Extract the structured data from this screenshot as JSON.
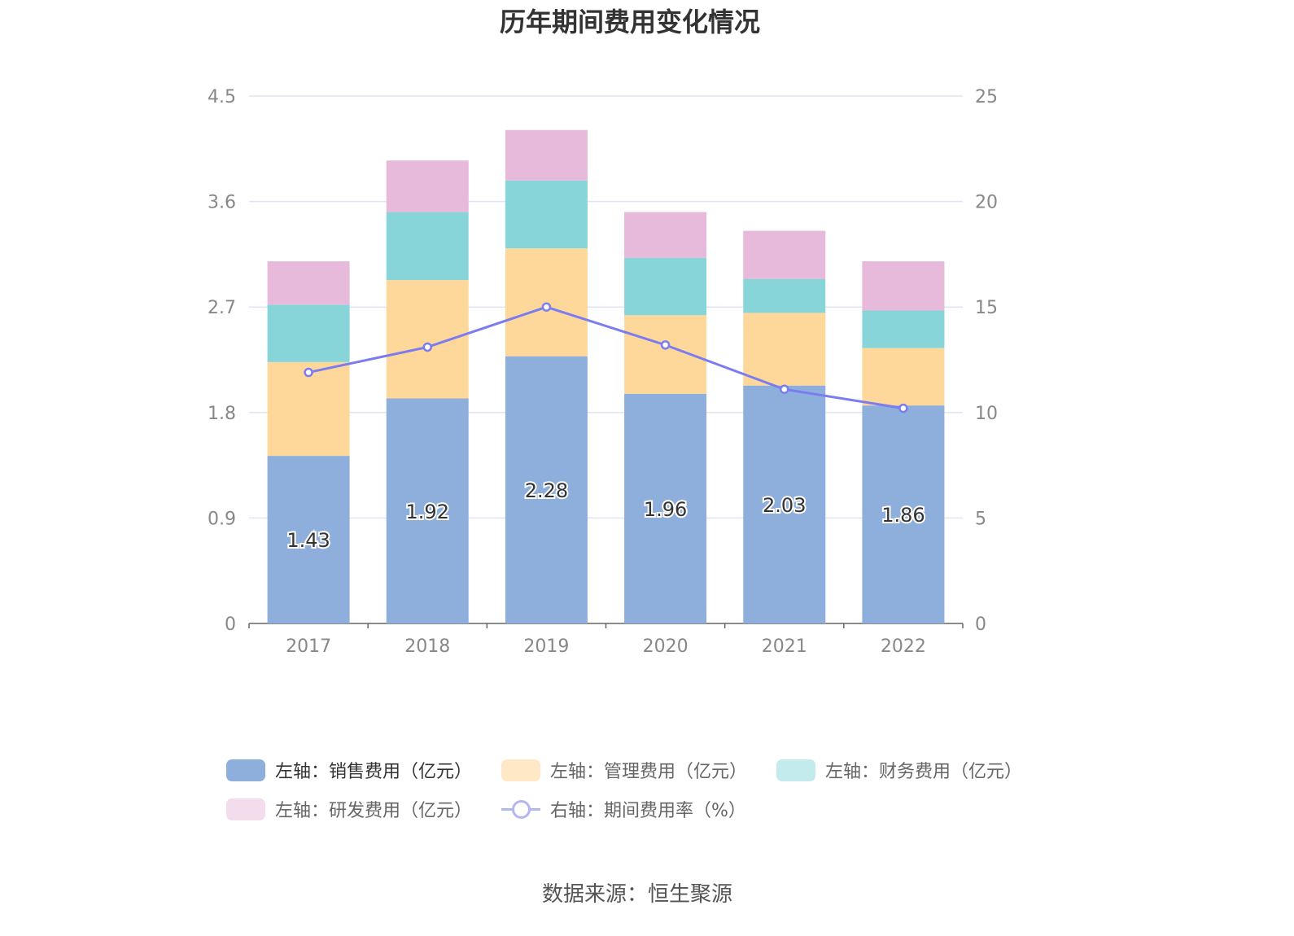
{
  "chart_data": {
    "type": "bar",
    "stacked": true,
    "title": "历年期间费用变化情况",
    "categories": [
      "2017",
      "2018",
      "2019",
      "2020",
      "2021",
      "2022"
    ],
    "y_left": {
      "ticks": [
        "0",
        "0.9",
        "1.8",
        "2.7",
        "3.6",
        "4.5"
      ],
      "ylim": [
        0,
        4.5
      ]
    },
    "y_right": {
      "ticks": [
        "0",
        "5",
        "10",
        "15",
        "20",
        "25"
      ],
      "ylim": [
        0,
        25
      ]
    },
    "grid": true,
    "legend_position": "bottom",
    "series": [
      {
        "name": "左轴：销售费用（亿元）",
        "type": "bar",
        "axis": "left",
        "color": "#8eaedb",
        "values": [
          1.43,
          1.92,
          2.28,
          1.96,
          2.03,
          1.86
        ],
        "labels": [
          "1.43",
          "1.92",
          "2.28",
          "1.96",
          "2.03",
          "1.86"
        ]
      },
      {
        "name": "左轴：管理费用（亿元）",
        "type": "bar",
        "axis": "left",
        "color": "#fed89a",
        "values": [
          0.8,
          1.01,
          0.92,
          0.67,
          0.62,
          0.49
        ]
      },
      {
        "name": "左轴：财务费用（亿元）",
        "type": "bar",
        "axis": "left",
        "color": "#87d5d9",
        "values": [
          0.49,
          0.58,
          0.58,
          0.49,
          0.29,
          0.32
        ]
      },
      {
        "name": "左轴：研发费用（亿元）",
        "type": "bar",
        "axis": "left",
        "color": "#e7b9da",
        "values": [
          0.37,
          0.44,
          0.43,
          0.39,
          0.41,
          0.42
        ]
      },
      {
        "name": "右轴：期间费用率（%）",
        "type": "line",
        "axis": "right",
        "color": "#7b7cf0",
        "values": [
          11.9,
          13.1,
          15.0,
          13.2,
          11.1,
          10.2
        ]
      }
    ]
  },
  "source": "数据来源：恒生聚源"
}
